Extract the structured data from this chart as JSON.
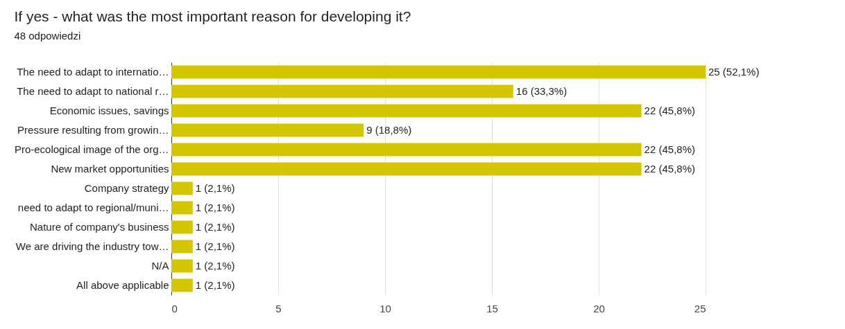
{
  "chart_data": {
    "type": "bar",
    "orientation": "horizontal",
    "title": "If yes - what was the most important reason for developing it?",
    "subtitle": "48 odpowiedzi",
    "categories": [
      "The need to adapt to internatio…",
      "The need to adapt to national r…",
      "Economic issues, savings",
      "Pressure resulting from growin…",
      "Pro-ecological image of the org…",
      "New market opportunities",
      "Company strategy",
      "need to adapt to regional/muni…",
      "Nature of company's business",
      "We are driving the industry tow…",
      "N/A",
      "All above applicable"
    ],
    "values": [
      25,
      16,
      22,
      9,
      22,
      22,
      1,
      1,
      1,
      1,
      1,
      1
    ],
    "value_labels": [
      "25 (52,1%)",
      "16 (33,3%)",
      "22 (45,8%)",
      "9 (18,8%)",
      "22 (45,8%)",
      "22 (45,8%)",
      "1 (2,1%)",
      "1 (2,1%)",
      "1 (2,1%)",
      "1 (2,1%)",
      "1 (2,1%)",
      "1 (2,1%)"
    ],
    "color": "#d4c600",
    "xlim": [
      0,
      25
    ],
    "xticks": [
      0,
      5,
      10,
      15,
      20,
      25
    ],
    "grid": "x"
  }
}
